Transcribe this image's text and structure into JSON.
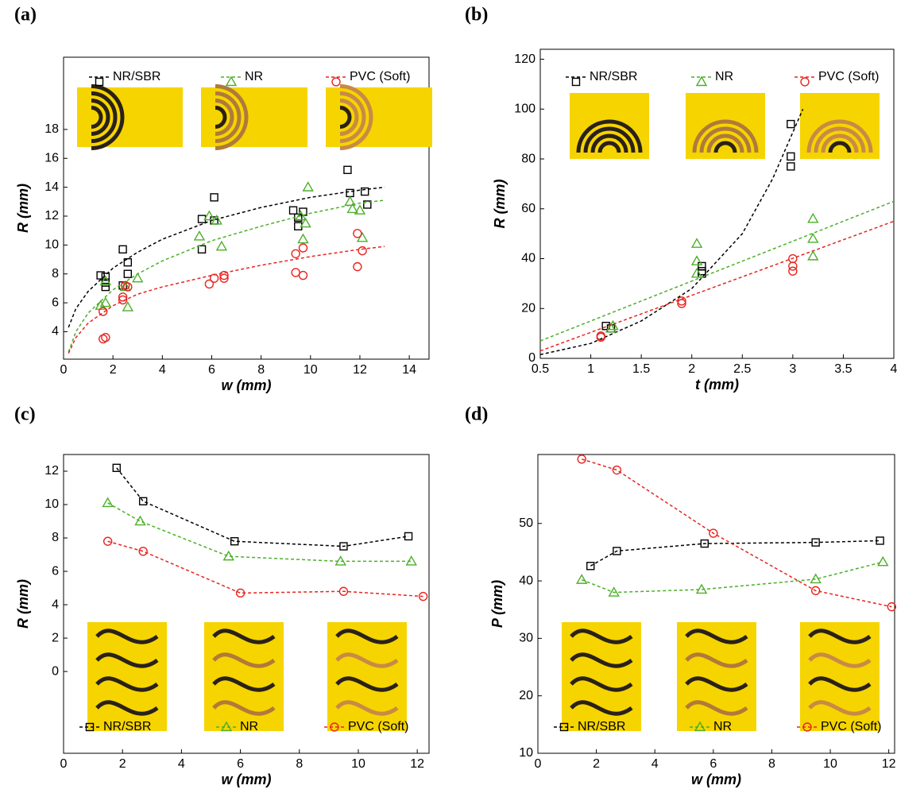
{
  "chart_data": [
    {
      "type": "scatter",
      "label": "(a)",
      "x_label": "w (mm)",
      "y_label": "R (mm)",
      "xlim": [
        0,
        14.8
      ],
      "ylim": [
        2.1,
        23
      ],
      "xticks": [
        0,
        2,
        4,
        6,
        8,
        10,
        12,
        14
      ],
      "yticks": [
        4,
        6,
        8,
        10,
        12,
        14,
        16,
        18
      ],
      "legend": "top",
      "series": [
        {
          "name": "NR/SBR",
          "color": "#000000",
          "marker": "square",
          "x": [
            1.5,
            1.7,
            1.7,
            1.7,
            2.4,
            2.4,
            2.6,
            2.6,
            5.6,
            5.6,
            6.1,
            6.1,
            9.3,
            9.5,
            9.5,
            9.7,
            11.5,
            11.6,
            12.2,
            12.3
          ],
          "values": [
            7.9,
            7.8,
            7.4,
            7.1,
            9.7,
            7.2,
            8.8,
            8.0,
            11.8,
            9.7,
            13.3,
            11.7,
            12.4,
            11.9,
            11.3,
            12.3,
            15.2,
            13.6,
            13.7,
            12.8
          ],
          "fit": {
            "x": [
              0.2,
              0.5,
              1,
              2,
              3,
              4,
              6,
              8,
              10,
              12,
              13
            ],
            "values": [
              4.3,
              5.6,
              6.8,
              8.4,
              9.5,
              10.4,
              11.7,
              12.6,
              13.3,
              13.8,
              14.0
            ]
          }
        },
        {
          "name": "NR",
          "color": "#4caf2a",
          "marker": "triangle",
          "x": [
            1.5,
            1.7,
            1.7,
            2.5,
            2.6,
            3.0,
            5.5,
            5.9,
            6.2,
            6.4,
            9.6,
            9.7,
            9.8,
            9.9,
            11.6,
            11.7,
            12.0,
            12.1
          ],
          "values": [
            5.8,
            6.0,
            7.5,
            7.1,
            5.7,
            7.7,
            10.6,
            12.0,
            11.7,
            9.9,
            12.0,
            10.4,
            11.5,
            14.0,
            13.0,
            12.5,
            12.4,
            10.5
          ],
          "fit": {
            "x": [
              0.2,
              0.5,
              1,
              2,
              3,
              4,
              6,
              8,
              10,
              12,
              13
            ],
            "values": [
              2.6,
              4.0,
              5.3,
              6.9,
              8.0,
              8.9,
              10.3,
              11.3,
              12.2,
              12.9,
              13.1
            ]
          }
        },
        {
          "name": "PVC (Soft)",
          "color": "#e8241f",
          "marker": "circle",
          "x": [
            1.6,
            1.6,
            1.7,
            2.4,
            2.4,
            2.5,
            2.6,
            5.9,
            6.1,
            6.5,
            6.5,
            9.4,
            9.4,
            9.7,
            9.7,
            11.9,
            11.9,
            12.1
          ],
          "values": [
            5.4,
            3.5,
            3.6,
            6.4,
            6.2,
            7.2,
            7.1,
            7.3,
            7.7,
            7.7,
            7.9,
            9.4,
            8.1,
            9.8,
            7.9,
            10.8,
            8.5,
            9.6
          ],
          "fit": {
            "x": [
              0.2,
              0.5,
              1,
              2,
              3,
              4,
              6,
              8,
              10,
              12,
              13
            ],
            "values": [
              2.5,
              3.6,
              4.6,
              5.8,
              6.6,
              7.1,
              7.9,
              8.6,
              9.2,
              9.7,
              9.9
            ]
          }
        }
      ]
    },
    {
      "type": "scatter",
      "label": "(b)",
      "x_label": "t (mm)",
      "y_label": "R (mm)",
      "xlim": [
        0.5,
        4
      ],
      "ylim": [
        0,
        124
      ],
      "xticks": [
        0.5,
        1,
        1.5,
        2,
        2.5,
        3,
        3.5,
        4
      ],
      "yticks": [
        0,
        20,
        40,
        60,
        80,
        100,
        120
      ],
      "legend": "top",
      "series": [
        {
          "name": "NR/SBR",
          "color": "#000000",
          "marker": "square",
          "x": [
            1.15,
            1.2,
            2.1,
            2.1,
            2.1,
            2.98,
            2.98,
            2.98
          ],
          "values": [
            13,
            12,
            37,
            35,
            34,
            94,
            81,
            77
          ],
          "fit": {
            "x": [
              0.5,
              1,
              1.5,
              2,
              2.5,
              2.8,
              3.1
            ],
            "values": [
              1.5,
              6,
              15,
              28,
              50,
              72,
              100
            ]
          }
        },
        {
          "name": "NR",
          "color": "#4caf2a",
          "marker": "triangle",
          "x": [
            1.2,
            1.22,
            2.05,
            2.05,
            2.05,
            3.2,
            3.2,
            3.2
          ],
          "values": [
            12,
            13,
            46,
            39,
            34,
            56,
            48,
            41
          ],
          "fit": {
            "x": [
              0.5,
              4
            ],
            "values": [
              7,
              63
            ]
          }
        },
        {
          "name": "PVC (Soft)",
          "color": "#e8241f",
          "marker": "circle",
          "x": [
            1.1,
            1.1,
            1.9,
            1.9,
            3.0,
            3.0,
            3.0
          ],
          "values": [
            9,
            8.5,
            23,
            22,
            40,
            37,
            35
          ],
          "fit": {
            "x": [
              0.5,
              4
            ],
            "values": [
              3,
              55
            ]
          }
        }
      ]
    },
    {
      "type": "line",
      "label": "(c)",
      "x_label": "w (mm)",
      "y_label": "R (mm)",
      "xlim": [
        0,
        12.4
      ],
      "ylim": [
        -4.9,
        13
      ],
      "xticks": [
        0,
        2,
        4,
        6,
        8,
        10,
        12
      ],
      "yticks": [
        0,
        2,
        4,
        6,
        8,
        10,
        12
      ],
      "legend": "bottom",
      "series": [
        {
          "name": "NR/SBR",
          "color": "#000000",
          "marker": "square",
          "x": [
            1.8,
            2.7,
            5.8,
            9.5,
            11.7
          ],
          "values": [
            12.2,
            10.2,
            7.8,
            7.5,
            8.1
          ]
        },
        {
          "name": "NR",
          "color": "#4caf2a",
          "marker": "triangle",
          "x": [
            1.5,
            2.6,
            5.6,
            9.4,
            11.8
          ],
          "values": [
            10.1,
            9.0,
            6.9,
            6.6,
            6.6
          ]
        },
        {
          "name": "PVC (Soft)",
          "color": "#e8241f",
          "marker": "circle",
          "x": [
            1.5,
            2.7,
            6.0,
            9.5,
            12.2
          ],
          "values": [
            7.8,
            7.2,
            4.7,
            4.8,
            4.5
          ]
        }
      ]
    },
    {
      "type": "line",
      "label": "(d)",
      "x_label": "w (mm)",
      "y_label": "P (mm)",
      "xlim": [
        0,
        12.2
      ],
      "ylim": [
        10,
        62
      ],
      "xticks": [
        0,
        2,
        4,
        6,
        8,
        10,
        12
      ],
      "yticks": [
        10,
        20,
        30,
        40,
        50
      ],
      "legend": "bottom",
      "series": [
        {
          "name": "NR/SBR",
          "color": "#000000",
          "marker": "square",
          "x": [
            1.8,
            2.7,
            5.7,
            9.5,
            11.7
          ],
          "values": [
            42.6,
            45.2,
            46.5,
            46.7,
            47.0
          ]
        },
        {
          "name": "NR",
          "color": "#4caf2a",
          "marker": "triangle",
          "x": [
            1.5,
            2.6,
            5.6,
            9.5,
            11.8
          ],
          "values": [
            40.2,
            38.0,
            38.5,
            40.3,
            43.3
          ]
        },
        {
          "name": "PVC (Soft)",
          "color": "#e8241f",
          "marker": "circle",
          "x": [
            1.5,
            2.7,
            6.0,
            9.5,
            12.1
          ],
          "values": [
            61.2,
            59.3,
            48.3,
            38.3,
            35.5
          ]
        }
      ]
    }
  ]
}
